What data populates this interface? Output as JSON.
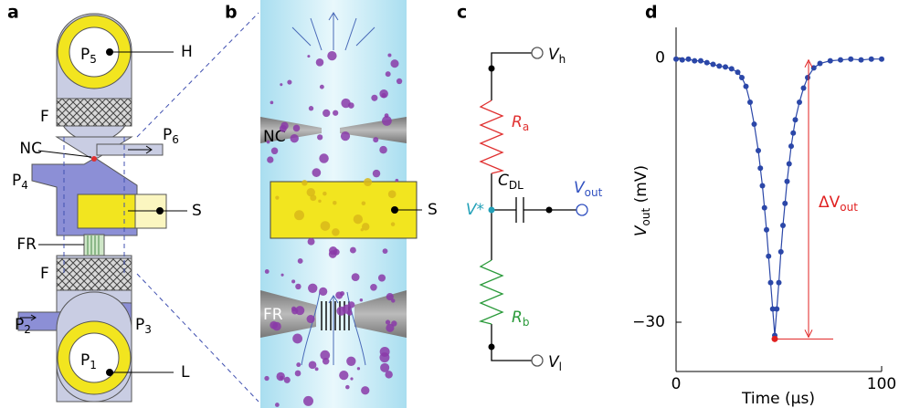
{
  "panel_a": {
    "letter": "a",
    "p5": {
      "main": "P",
      "sub": "5"
    },
    "h": "H",
    "f_top": "F",
    "nc": "NC",
    "p6": {
      "main": "P",
      "sub": "6"
    },
    "p4": {
      "main": "P",
      "sub": "4"
    },
    "s": "S",
    "fr": "FR",
    "f_bottom": "F",
    "p2": {
      "main": "P",
      "sub": "2"
    },
    "p3": {
      "main": "P",
      "sub": "3"
    },
    "p1": {
      "main": "P",
      "sub": "1"
    },
    "l": "L"
  },
  "panel_b": {
    "letter": "b",
    "nc": "NC",
    "s": "S",
    "fr": "FR"
  },
  "panel_c": {
    "letter": "c",
    "vh": {
      "main": "V",
      "sub": "h"
    },
    "ra": {
      "main": "R",
      "sub": "a"
    },
    "cdl": {
      "main": "C",
      "sub": "DL"
    },
    "vout": {
      "main": "V",
      "sub": "out"
    },
    "vstar": "V*",
    "rb": {
      "main": "R",
      "sub": "b"
    },
    "vl": {
      "main": "V",
      "sub": "l"
    }
  },
  "chart_data": {
    "type": "line",
    "letter": "d",
    "xlabel": "Time (µs)",
    "ylabel": {
      "main": "V",
      "sub": "out",
      "rest": " (mV)"
    },
    "annotation": {
      "main": "ΔV",
      "sub": "out"
    },
    "x": [
      0,
      3,
      6,
      9,
      12,
      15,
      18,
      21,
      24,
      27,
      30,
      32,
      34,
      36,
      38,
      40,
      41,
      42,
      43,
      44,
      45,
      46,
      47,
      48,
      49,
      50,
      51,
      52,
      53,
      54,
      55,
      56,
      57,
      58,
      60,
      62,
      64,
      67,
      70,
      75,
      80,
      85,
      90,
      95,
      100
    ],
    "values": [
      -0.1,
      -0.2,
      -0.1,
      -0.3,
      -0.3,
      -0.5,
      -0.7,
      -0.9,
      -1.0,
      -1.2,
      -1.6,
      -2.2,
      -3.2,
      -5,
      -7.5,
      -10.5,
      -12.5,
      -14.5,
      -17,
      -19.5,
      -22.5,
      -25.5,
      -28.5,
      -31.5,
      -28.5,
      -25.5,
      -22,
      -19,
      -16.5,
      -14,
      -12,
      -10,
      -8.5,
      -7,
      -5,
      -3.4,
      -2.2,
      -1.1,
      -0.6,
      -0.3,
      -0.2,
      -0.1,
      -0.2,
      -0.1,
      -0.1
    ],
    "color": "#2b47a8",
    "marker": {
      "x": 48,
      "y": -31.9,
      "color": "#e02020"
    },
    "xlim": [
      0,
      100
    ],
    "ylim": [
      -35.6,
      3.5
    ],
    "xticks": [
      0,
      100
    ],
    "yticks": [
      {
        "value": -30,
        "label": "−30"
      },
      0
    ]
  }
}
